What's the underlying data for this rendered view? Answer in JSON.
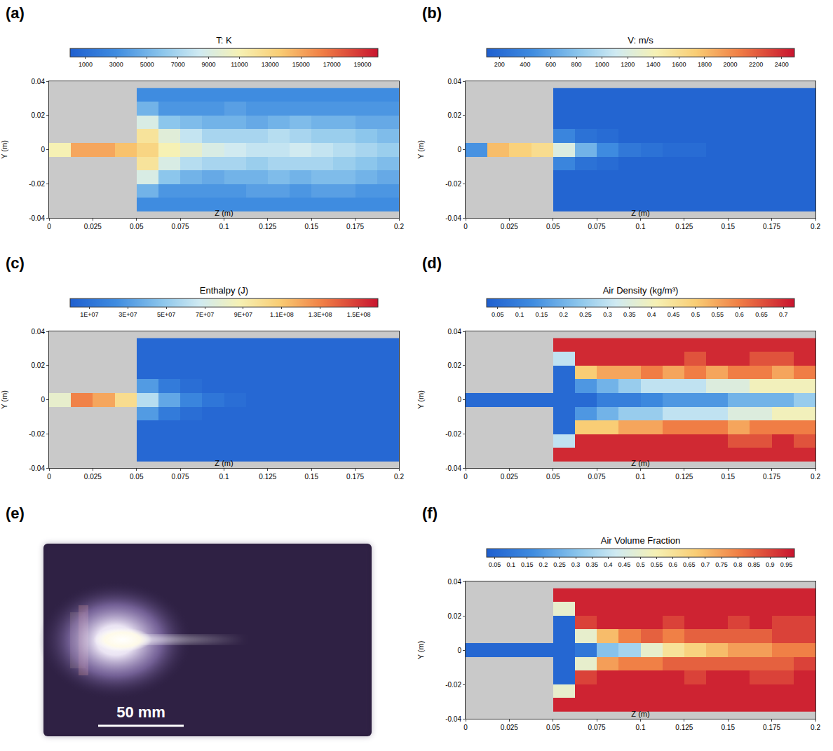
{
  "chart_data": [
    {
      "type": "heatmap",
      "panel": "(a)",
      "xlabel": "Z (m)",
      "ylabel": "Y (m)",
      "xlim": [
        0,
        0.2
      ],
      "xticks": [
        0,
        0.025,
        0.05,
        0.075,
        0.1,
        0.125,
        0.15,
        0.175,
        0.2
      ],
      "ylim": [
        -0.04,
        0.04
      ],
      "yticks": [
        -0.04,
        -0.02,
        0,
        0.02,
        0.04
      ],
      "x": [
        0.00625,
        0.01875,
        0.03125,
        0.04375,
        0.05625,
        0.06875,
        0.08125,
        0.09375,
        0.10625,
        0.11875,
        0.13125,
        0.14375,
        0.15625,
        0.16875,
        0.18125,
        0.19375
      ],
      "y": [
        -0.032,
        -0.024,
        -0.016,
        -0.008,
        0,
        0.008,
        0.016,
        0.024,
        0.032
      ],
      "colorbar": {
        "title": "T: K",
        "range": [
          0,
          20000
        ],
        "ticks": [
          1000,
          3000,
          5000,
          7000,
          9000,
          11000,
          13000,
          15000,
          17000,
          19000
        ]
      },
      "cells": [
        [
          null,
          null,
          null,
          null,
          3000,
          3000,
          3000,
          3000,
          3000,
          3000,
          3000,
          3000,
          3000,
          3000,
          3000,
          3000
        ],
        [
          null,
          null,
          null,
          null,
          5000,
          3500,
          3500,
          3500,
          3500,
          4000,
          4000,
          3500,
          4000,
          4000,
          3500,
          3500
        ],
        [
          null,
          null,
          null,
          null,
          9000,
          6000,
          5000,
          4500,
          5000,
          5000,
          5500,
          5000,
          5500,
          5500,
          5000,
          4500
        ],
        [
          null,
          null,
          null,
          null,
          12000,
          9000,
          7500,
          7000,
          7000,
          6500,
          7000,
          7000,
          7000,
          6500,
          6000,
          5500
        ],
        [
          11000,
          15000,
          15000,
          14000,
          13000,
          11000,
          10000,
          9000,
          8500,
          8000,
          8000,
          8500,
          8000,
          7500,
          7000,
          6500
        ],
        [
          null,
          null,
          null,
          null,
          12000,
          9500,
          8000,
          7000,
          7000,
          7000,
          7500,
          7000,
          6500,
          6500,
          6000,
          5500
        ],
        [
          null,
          null,
          null,
          null,
          9000,
          6000,
          5500,
          5000,
          5000,
          4500,
          5000,
          5500,
          5000,
          5000,
          4500,
          4500
        ],
        [
          null,
          null,
          null,
          null,
          5000,
          3500,
          3500,
          3500,
          4000,
          3500,
          3500,
          3500,
          3500,
          3500,
          3500,
          3500
        ],
        [
          null,
          null,
          null,
          null,
          3000,
          3000,
          3000,
          3000,
          3000,
          3000,
          3000,
          3000,
          3000,
          3000,
          3000,
          3000
        ]
      ]
    },
    {
      "type": "heatmap",
      "panel": "(b)",
      "xlabel": "Z (m)",
      "ylabel": "Y (m)",
      "xlim": [
        0,
        0.2
      ],
      "xticks": [
        0,
        0.025,
        0.05,
        0.075,
        0.1,
        0.125,
        0.15,
        0.175,
        0.2
      ],
      "ylim": [
        -0.04,
        0.04
      ],
      "yticks": [
        -0.04,
        -0.02,
        0,
        0.02,
        0.04
      ],
      "x": [
        0.00625,
        0.01875,
        0.03125,
        0.04375,
        0.05625,
        0.06875,
        0.08125,
        0.09375,
        0.10625,
        0.11875,
        0.13125,
        0.14375,
        0.15625,
        0.16875,
        0.18125,
        0.19375
      ],
      "y": [
        -0.032,
        -0.024,
        -0.016,
        -0.008,
        0,
        0.008,
        0.016,
        0.024,
        0.032
      ],
      "colorbar": {
        "title": "V: m/s",
        "range": [
          100,
          2500
        ],
        "ticks": [
          200,
          400,
          600,
          800,
          1000,
          1200,
          1400,
          1600,
          1800,
          2000,
          2200,
          2400
        ]
      },
      "cells": [
        [
          null,
          null,
          null,
          null,
          150,
          150,
          150,
          150,
          150,
          150,
          150,
          150,
          150,
          150,
          150,
          150
        ],
        [
          null,
          null,
          null,
          null,
          150,
          150,
          150,
          150,
          150,
          150,
          150,
          150,
          150,
          150,
          150,
          150
        ],
        [
          null,
          null,
          null,
          null,
          150,
          150,
          150,
          150,
          150,
          150,
          150,
          150,
          150,
          150,
          150,
          150
        ],
        [
          null,
          null,
          null,
          null,
          400,
          250,
          200,
          150,
          150,
          150,
          150,
          150,
          150,
          150,
          150,
          150
        ],
        [
          500,
          1800,
          1700,
          1600,
          1200,
          700,
          450,
          300,
          250,
          200,
          200,
          150,
          150,
          150,
          150,
          150
        ],
        [
          null,
          null,
          null,
          null,
          400,
          250,
          200,
          150,
          150,
          150,
          150,
          150,
          150,
          150,
          150,
          150
        ],
        [
          null,
          null,
          null,
          null,
          150,
          150,
          150,
          150,
          150,
          150,
          150,
          150,
          150,
          150,
          150,
          150
        ],
        [
          null,
          null,
          null,
          null,
          150,
          150,
          150,
          150,
          150,
          150,
          150,
          150,
          150,
          150,
          150,
          150
        ],
        [
          null,
          null,
          null,
          null,
          150,
          150,
          150,
          150,
          150,
          150,
          150,
          150,
          150,
          150,
          150,
          150
        ]
      ]
    },
    {
      "type": "heatmap",
      "panel": "(c)",
      "xlabel": "Z (m)",
      "ylabel": "Y (m)",
      "xlim": [
        0,
        0.2
      ],
      "xticks": [
        0,
        0.025,
        0.05,
        0.075,
        0.1,
        0.125,
        0.15,
        0.175,
        0.2
      ],
      "ylim": [
        -0.04,
        0.04
      ],
      "yticks": [
        -0.04,
        -0.02,
        0,
        0.02,
        0.04
      ],
      "x": [
        0.00625,
        0.01875,
        0.03125,
        0.04375,
        0.05625,
        0.06875,
        0.08125,
        0.09375,
        0.10625,
        0.11875,
        0.13125,
        0.14375,
        0.15625,
        0.16875,
        0.18125,
        0.19375
      ],
      "y": [
        -0.032,
        -0.024,
        -0.016,
        -0.008,
        0,
        0.008,
        0.016,
        0.024,
        0.032
      ],
      "colorbar": {
        "title": "Enthalpy (J)",
        "range": [
          0,
          160000000
        ],
        "ticks": [
          {
            "value": 10000000,
            "label": "1E+07"
          },
          {
            "value": 30000000,
            "label": "3E+07"
          },
          {
            "value": 50000000,
            "label": "5E+07"
          },
          {
            "value": 70000000,
            "label": "7E+07"
          },
          {
            "value": 90000000,
            "label": "9E+07"
          },
          {
            "value": 110000000,
            "label": "1.1E+08"
          },
          {
            "value": 130000000,
            "label": "1.3E+08"
          },
          {
            "value": 150000000,
            "label": "1.5E+08"
          }
        ]
      },
      "cells": [
        [
          null,
          null,
          null,
          null,
          5000000,
          5000000,
          5000000,
          5000000,
          5000000,
          5000000,
          5000000,
          5000000,
          5000000,
          5000000,
          5000000,
          5000000
        ],
        [
          null,
          null,
          null,
          null,
          5000000,
          5000000,
          5000000,
          5000000,
          5000000,
          5000000,
          5000000,
          5000000,
          5000000,
          5000000,
          5000000,
          5000000
        ],
        [
          null,
          null,
          null,
          null,
          5000000,
          5000000,
          5000000,
          5000000,
          5000000,
          5000000,
          5000000,
          5000000,
          5000000,
          5000000,
          5000000,
          5000000
        ],
        [
          null,
          null,
          null,
          null,
          30000000,
          15000000,
          8000000,
          5000000,
          5000000,
          5000000,
          5000000,
          5000000,
          5000000,
          5000000,
          5000000,
          5000000
        ],
        [
          80000000,
          130000000,
          120000000,
          100000000,
          60000000,
          35000000,
          20000000,
          12000000,
          8000000,
          5000000,
          5000000,
          5000000,
          5000000,
          5000000,
          5000000,
          5000000
        ],
        [
          null,
          null,
          null,
          null,
          30000000,
          15000000,
          8000000,
          5000000,
          5000000,
          5000000,
          5000000,
          5000000,
          5000000,
          5000000,
          5000000,
          5000000
        ],
        [
          null,
          null,
          null,
          null,
          5000000,
          5000000,
          5000000,
          5000000,
          5000000,
          5000000,
          5000000,
          5000000,
          5000000,
          5000000,
          5000000,
          5000000
        ],
        [
          null,
          null,
          null,
          null,
          5000000,
          5000000,
          5000000,
          5000000,
          5000000,
          5000000,
          5000000,
          5000000,
          5000000,
          5000000,
          5000000,
          5000000
        ],
        [
          null,
          null,
          null,
          null,
          5000000,
          5000000,
          5000000,
          5000000,
          5000000,
          5000000,
          5000000,
          5000000,
          5000000,
          5000000,
          5000000,
          5000000
        ]
      ]
    },
    {
      "type": "heatmap",
      "panel": "(d)",
      "xlabel": "Z (m)",
      "ylabel": "Y (m)",
      "xlim": [
        0,
        0.2
      ],
      "xticks": [
        0,
        0.025,
        0.05,
        0.075,
        0.1,
        0.125,
        0.15,
        0.175,
        0.2
      ],
      "ylim": [
        -0.04,
        0.04
      ],
      "yticks": [
        -0.04,
        -0.02,
        0,
        0.02,
        0.04
      ],
      "x": [
        0.00625,
        0.01875,
        0.03125,
        0.04375,
        0.05625,
        0.06875,
        0.08125,
        0.09375,
        0.10625,
        0.11875,
        0.13125,
        0.14375,
        0.15625,
        0.16875,
        0.18125,
        0.19375
      ],
      "y": [
        -0.032,
        -0.024,
        -0.016,
        -0.008,
        0,
        0.008,
        0.016,
        0.024,
        0.032
      ],
      "colorbar": {
        "title": "Air Density (kg/m³)",
        "range": [
          0.025,
          0.725
        ],
        "ticks": [
          0.05,
          0.1,
          0.15,
          0.2,
          0.25,
          0.3,
          0.35,
          0.4,
          0.45,
          0.5,
          0.55,
          0.6,
          0.65,
          0.7
        ]
      },
      "cells": [
        [
          null,
          null,
          null,
          null,
          0.7,
          0.7,
          0.7,
          0.7,
          0.7,
          0.7,
          0.7,
          0.7,
          0.7,
          0.7,
          0.7,
          0.7
        ],
        [
          null,
          null,
          null,
          null,
          0.3,
          0.7,
          0.7,
          0.7,
          0.7,
          0.7,
          0.7,
          0.7,
          0.65,
          0.65,
          0.7,
          0.65
        ],
        [
          null,
          null,
          null,
          null,
          0.05,
          0.5,
          0.5,
          0.55,
          0.55,
          0.6,
          0.6,
          0.6,
          0.55,
          0.6,
          0.6,
          0.6
        ],
        [
          null,
          null,
          null,
          null,
          0.05,
          0.15,
          0.2,
          0.25,
          0.25,
          0.3,
          0.3,
          0.3,
          0.35,
          0.35,
          0.4,
          0.4
        ],
        [
          0.05,
          0.05,
          0.05,
          0.05,
          0.05,
          0.05,
          0.1,
          0.1,
          0.12,
          0.15,
          0.15,
          0.15,
          0.2,
          0.2,
          0.2,
          0.25
        ],
        [
          null,
          null,
          null,
          null,
          0.05,
          0.15,
          0.2,
          0.25,
          0.3,
          0.3,
          0.3,
          0.35,
          0.35,
          0.4,
          0.4,
          0.4
        ],
        [
          null,
          null,
          null,
          null,
          0.05,
          0.5,
          0.55,
          0.55,
          0.6,
          0.55,
          0.6,
          0.55,
          0.6,
          0.6,
          0.55,
          0.6
        ],
        [
          null,
          null,
          null,
          null,
          0.3,
          0.7,
          0.7,
          0.7,
          0.7,
          0.7,
          0.65,
          0.7,
          0.7,
          0.65,
          0.65,
          0.7
        ],
        [
          null,
          null,
          null,
          null,
          0.7,
          0.7,
          0.7,
          0.7,
          0.7,
          0.7,
          0.7,
          0.7,
          0.7,
          0.7,
          0.7,
          0.7
        ]
      ]
    },
    {
      "type": "heatmap",
      "panel": "(f)",
      "xlabel": "Z (m)",
      "ylabel": "Y (m)",
      "xlim": [
        0,
        0.2
      ],
      "xticks": [
        0,
        0.025,
        0.05,
        0.075,
        0.1,
        0.125,
        0.15,
        0.175,
        0.2
      ],
      "ylim": [
        -0.04,
        0.04
      ],
      "yticks": [
        -0.04,
        -0.02,
        0,
        0.02,
        0.04
      ],
      "x": [
        0.00625,
        0.01875,
        0.03125,
        0.04375,
        0.05625,
        0.06875,
        0.08125,
        0.09375,
        0.10625,
        0.11875,
        0.13125,
        0.14375,
        0.15625,
        0.16875,
        0.18125,
        0.19375
      ],
      "y": [
        -0.032,
        -0.024,
        -0.016,
        -0.008,
        0,
        0.008,
        0.016,
        0.024,
        0.032
      ],
      "colorbar": {
        "title": "Air Volume Fraction",
        "range": [
          0.025,
          0.975
        ],
        "ticks": [
          0.05,
          0.1,
          0.15,
          0.2,
          0.25,
          0.3,
          0.35,
          0.4,
          0.45,
          0.5,
          0.55,
          0.6,
          0.65,
          0.7,
          0.75,
          0.8,
          0.85,
          0.9,
          0.95
        ]
      },
      "cells": [
        [
          null,
          null,
          null,
          null,
          0.95,
          0.95,
          0.95,
          0.95,
          0.95,
          0.95,
          0.95,
          0.95,
          0.95,
          0.95,
          0.95,
          0.95
        ],
        [
          null,
          null,
          null,
          null,
          0.5,
          0.95,
          0.95,
          0.95,
          0.95,
          0.95,
          0.95,
          0.95,
          0.95,
          0.95,
          0.95,
          0.95
        ],
        [
          null,
          null,
          null,
          null,
          0.05,
          0.9,
          0.95,
          0.95,
          0.95,
          0.95,
          0.9,
          0.95,
          0.95,
          0.9,
          0.9,
          0.95
        ],
        [
          null,
          null,
          null,
          null,
          0.05,
          0.5,
          0.75,
          0.8,
          0.8,
          0.85,
          0.85,
          0.85,
          0.85,
          0.85,
          0.85,
          0.9
        ],
        [
          0.05,
          0.05,
          0.05,
          0.05,
          0.05,
          0.1,
          0.3,
          0.35,
          0.5,
          0.6,
          0.65,
          0.7,
          0.75,
          0.75,
          0.8,
          0.8
        ],
        [
          null,
          null,
          null,
          null,
          0.05,
          0.5,
          0.7,
          0.8,
          0.85,
          0.8,
          0.85,
          0.85,
          0.85,
          0.85,
          0.9,
          0.9
        ],
        [
          null,
          null,
          null,
          null,
          0.05,
          0.9,
          0.95,
          0.95,
          0.95,
          0.9,
          0.95,
          0.95,
          0.9,
          0.95,
          0.9,
          0.9
        ],
        [
          null,
          null,
          null,
          null,
          0.5,
          0.95,
          0.95,
          0.95,
          0.95,
          0.95,
          0.95,
          0.95,
          0.95,
          0.95,
          0.95,
          0.95
        ],
        [
          null,
          null,
          null,
          null,
          0.95,
          0.95,
          0.95,
          0.95,
          0.95,
          0.95,
          0.95,
          0.95,
          0.95,
          0.95,
          0.95,
          0.95
        ]
      ]
    }
  ],
  "photo": {
    "panel": "(e)",
    "scale_bar": "50 mm"
  }
}
